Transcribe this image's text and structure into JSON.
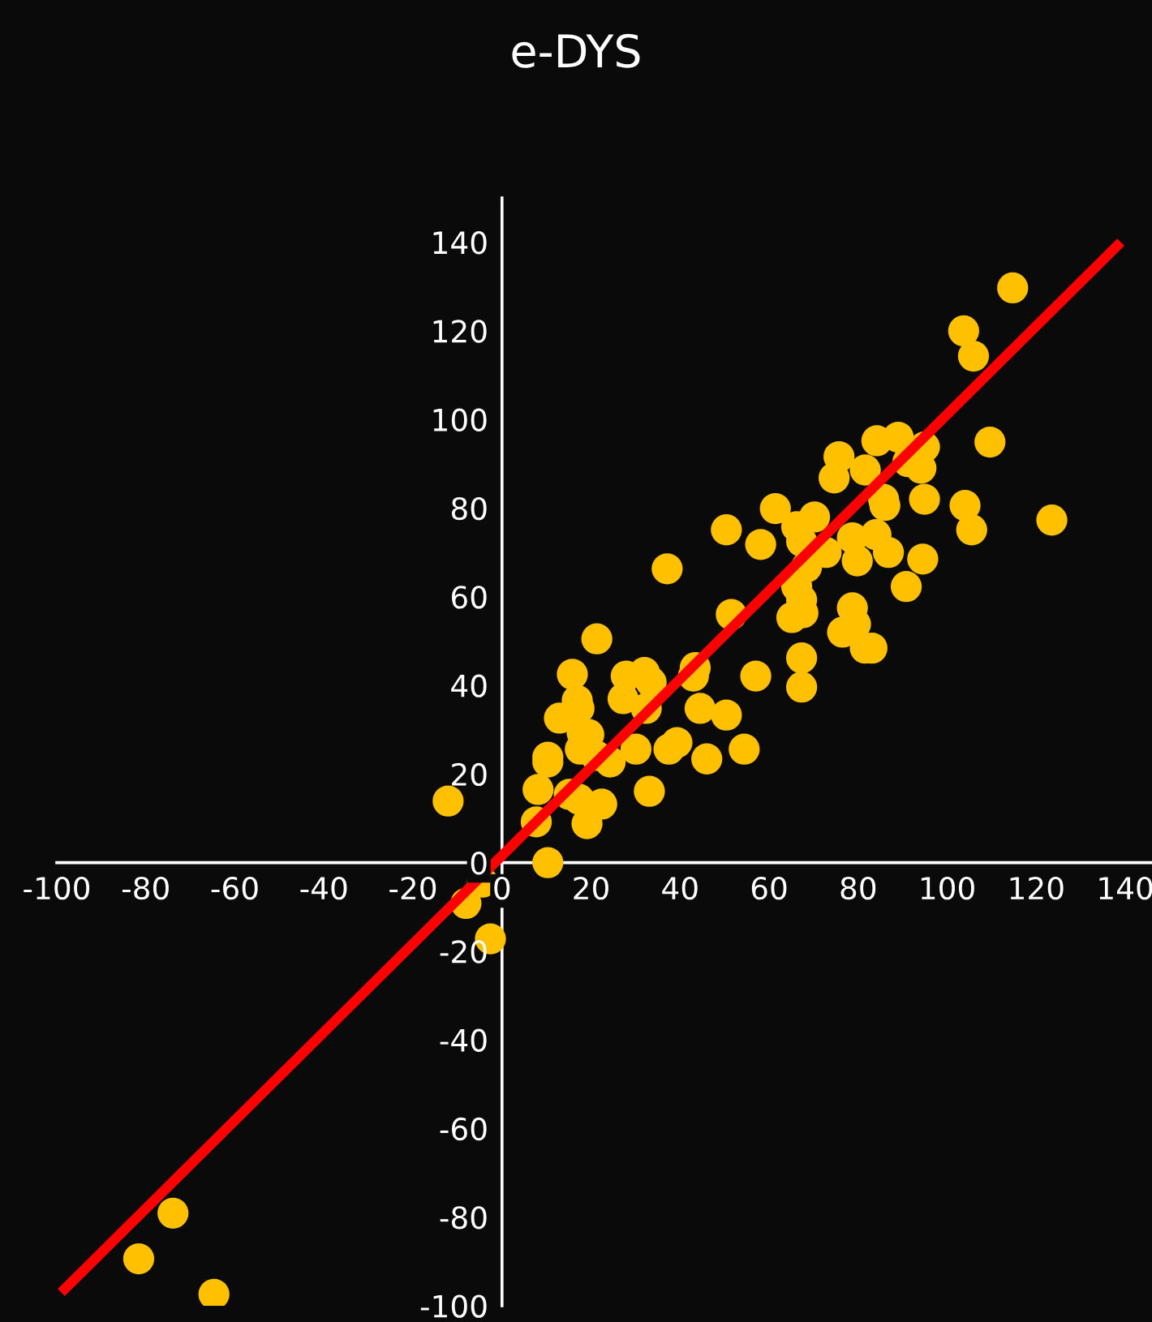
{
  "chart_data": {
    "type": "scatter",
    "title": "e-DYS",
    "xlim": [
      -100,
      146
    ],
    "ylim": [
      -100,
      150
    ],
    "xticks": [
      -100,
      -80,
      -60,
      -40,
      -20,
      0,
      20,
      40,
      60,
      80,
      100,
      120,
      140
    ],
    "yticks": [
      -100,
      -80,
      -60,
      -40,
      -20,
      0,
      20,
      40,
      60,
      80,
      100,
      120,
      140
    ],
    "grid": false,
    "marker": "circle",
    "series": [
      {
        "color": "#ffc000",
        "x": [
          114.7,
          103.7,
          105.9,
          109.6,
          123.5,
          84.2,
          89,
          94.9,
          91.2,
          94.1,
          75.7,
          81.6,
          74.6,
          85.7,
          86,
          94.9,
          104,
          105.5,
          61.4,
          50.4,
          70.2,
          66.2,
          67.3,
          58.1,
          78.7,
          84,
          86.8,
          72.8,
          68.4,
          79.8,
          94.5,
          90.8,
          37.1,
          66.2,
          67.3,
          67.6,
          65.1,
          51.5,
          78.7,
          79.4,
          76.5,
          83.1,
          81.6,
          67.3,
          67.3,
          57,
          21.3,
          43.4,
          43,
          27.9,
          32,
          33.5,
          15.8,
          16.9,
          17.3,
          12.9,
          27.2,
          32.4,
          44.5,
          50.4,
          37.5,
          39.3,
          30.1,
          17.6,
          21,
          24.3,
          10.3,
          10.3,
          18,
          19.5,
          46,
          54.4,
          8.1,
          15.1,
          17.3,
          22.4,
          33.1,
          7.7,
          19.1,
          -12.1,
          10.3,
          -4.4,
          -8.1,
          -2.6,
          -73.9,
          -81.6,
          -64.7
        ],
        "values": [
          129.7,
          120,
          114.3,
          94.9,
          77.3,
          95.2,
          96,
          93.8,
          90.5,
          89,
          91.6,
          88.6,
          86.8,
          82,
          80.6,
          82,
          80.6,
          75.1,
          79.9,
          75.1,
          78,
          75.8,
          72.5,
          71.8,
          73.3,
          74,
          70,
          70,
          66.7,
          68.1,
          68.5,
          62.3,
          66.3,
          62.3,
          59.3,
          56.4,
          55.3,
          56,
          57.5,
          53.8,
          52,
          48.4,
          48.4,
          46.2,
          39.6,
          42.1,
          50.5,
          44,
          42.1,
          42.1,
          42.9,
          40.7,
          42.5,
          36.6,
          34.8,
          32.6,
          37,
          34.8,
          34.8,
          33.3,
          25.6,
          27.1,
          25.6,
          25.6,
          24.2,
          22.7,
          23.8,
          22.7,
          29.3,
          28.9,
          23.4,
          25.6,
          16.5,
          15.4,
          14.3,
          13.2,
          16.1,
          9.2,
          8.8,
          13.9,
          0,
          -4.4,
          -9.2,
          -17.2,
          -79.1,
          -89.4,
          -97.4
        ]
      },
      {
        "type": "line",
        "marker": "none",
        "color": "#ff0000",
        "x": [
          -99,
          139
        ],
        "values": [
          -97,
          140
        ]
      }
    ]
  }
}
